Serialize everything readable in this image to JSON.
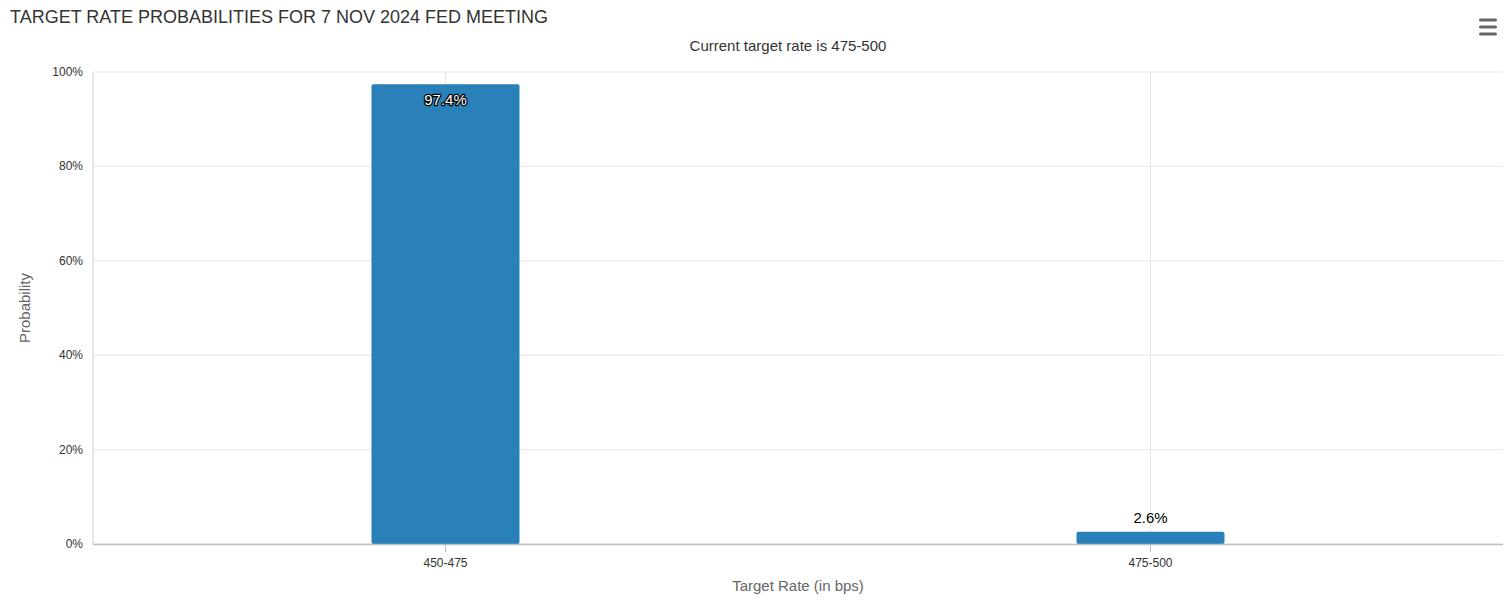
{
  "chart_data": {
    "type": "bar",
    "title": "TARGET RATE PROBABILITIES FOR 7 NOV 2024 FED MEETING",
    "subtitle": "Current target rate is 475-500",
    "x_label": "Target Rate (in bps)",
    "y_label": "Probability",
    "categories": [
      "450-475",
      "475-500"
    ],
    "values": [
      97.4,
      2.6
    ],
    "value_labels": [
      "97.4%",
      "2.6%"
    ],
    "color": "#2a80b9",
    "ylim": [
      0,
      100
    ],
    "yticks": [
      {
        "value": 0,
        "label": "0%"
      },
      {
        "value": 20,
        "label": "20%"
      },
      {
        "value": 40,
        "label": "40%"
      },
      {
        "value": 60,
        "label": "60%"
      },
      {
        "value": 80,
        "label": "80%"
      },
      {
        "value": 100,
        "label": "100%"
      }
    ],
    "grid": true,
    "data_labels": true
  }
}
